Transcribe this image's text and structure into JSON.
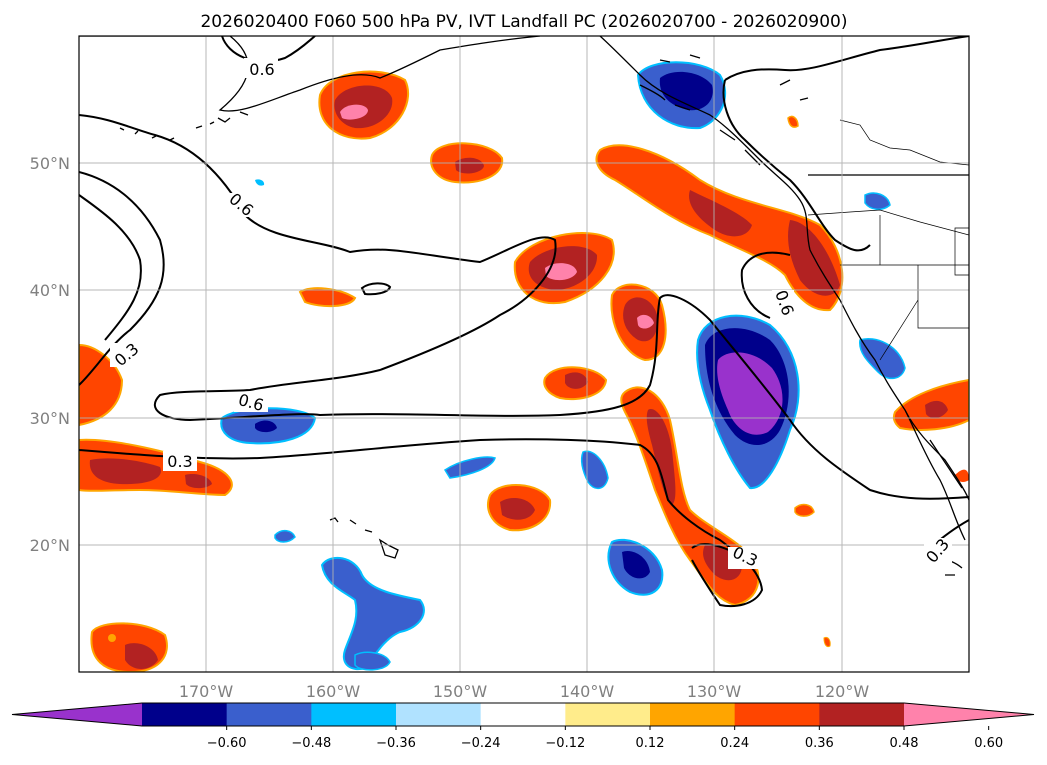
{
  "figure": {
    "title": "2026020400 F060 500 hPa PV, IVT Landfall PC (2026020700 - 2026020900)"
  },
  "map": {
    "lon_range": [
      -180,
      -110
    ],
    "lat_range": [
      10,
      60
    ],
    "lon_ticks": [
      {
        "value": -170,
        "label": "170°W"
      },
      {
        "value": -160,
        "label": "160°W"
      },
      {
        "value": -150,
        "label": "150°W"
      },
      {
        "value": -140,
        "label": "140°W"
      },
      {
        "value": -130,
        "label": "130°W"
      },
      {
        "value": -120,
        "label": "120°W"
      }
    ],
    "lat_ticks": [
      {
        "value": 50,
        "label": "50°N"
      },
      {
        "value": 40,
        "label": "40°N"
      },
      {
        "value": 30,
        "label": "30°N"
      },
      {
        "value": 20,
        "label": "20°N"
      }
    ],
    "contour_labels": [
      "0.6",
      "0.6",
      "0.6",
      "0.6",
      "0.3",
      "0.3",
      "0.3",
      "0.3"
    ]
  },
  "colorbar": {
    "levels": [
      "−0.60",
      "−0.48",
      "−0.36",
      "−0.24",
      "−0.12",
      "0.12",
      "0.24",
      "0.36",
      "0.48",
      "0.60"
    ],
    "colors": [
      "#9932cc",
      "#00008b",
      "#3a5fcd",
      "#00bfff",
      "#b0e2ff",
      "#ffffff",
      "#ffec8b",
      "#ffa500",
      "#ff4500",
      "#b22222",
      "#ff82ab"
    ]
  },
  "colors": {
    "land_outline": "#000000",
    "grid": "#b0b0b0"
  }
}
